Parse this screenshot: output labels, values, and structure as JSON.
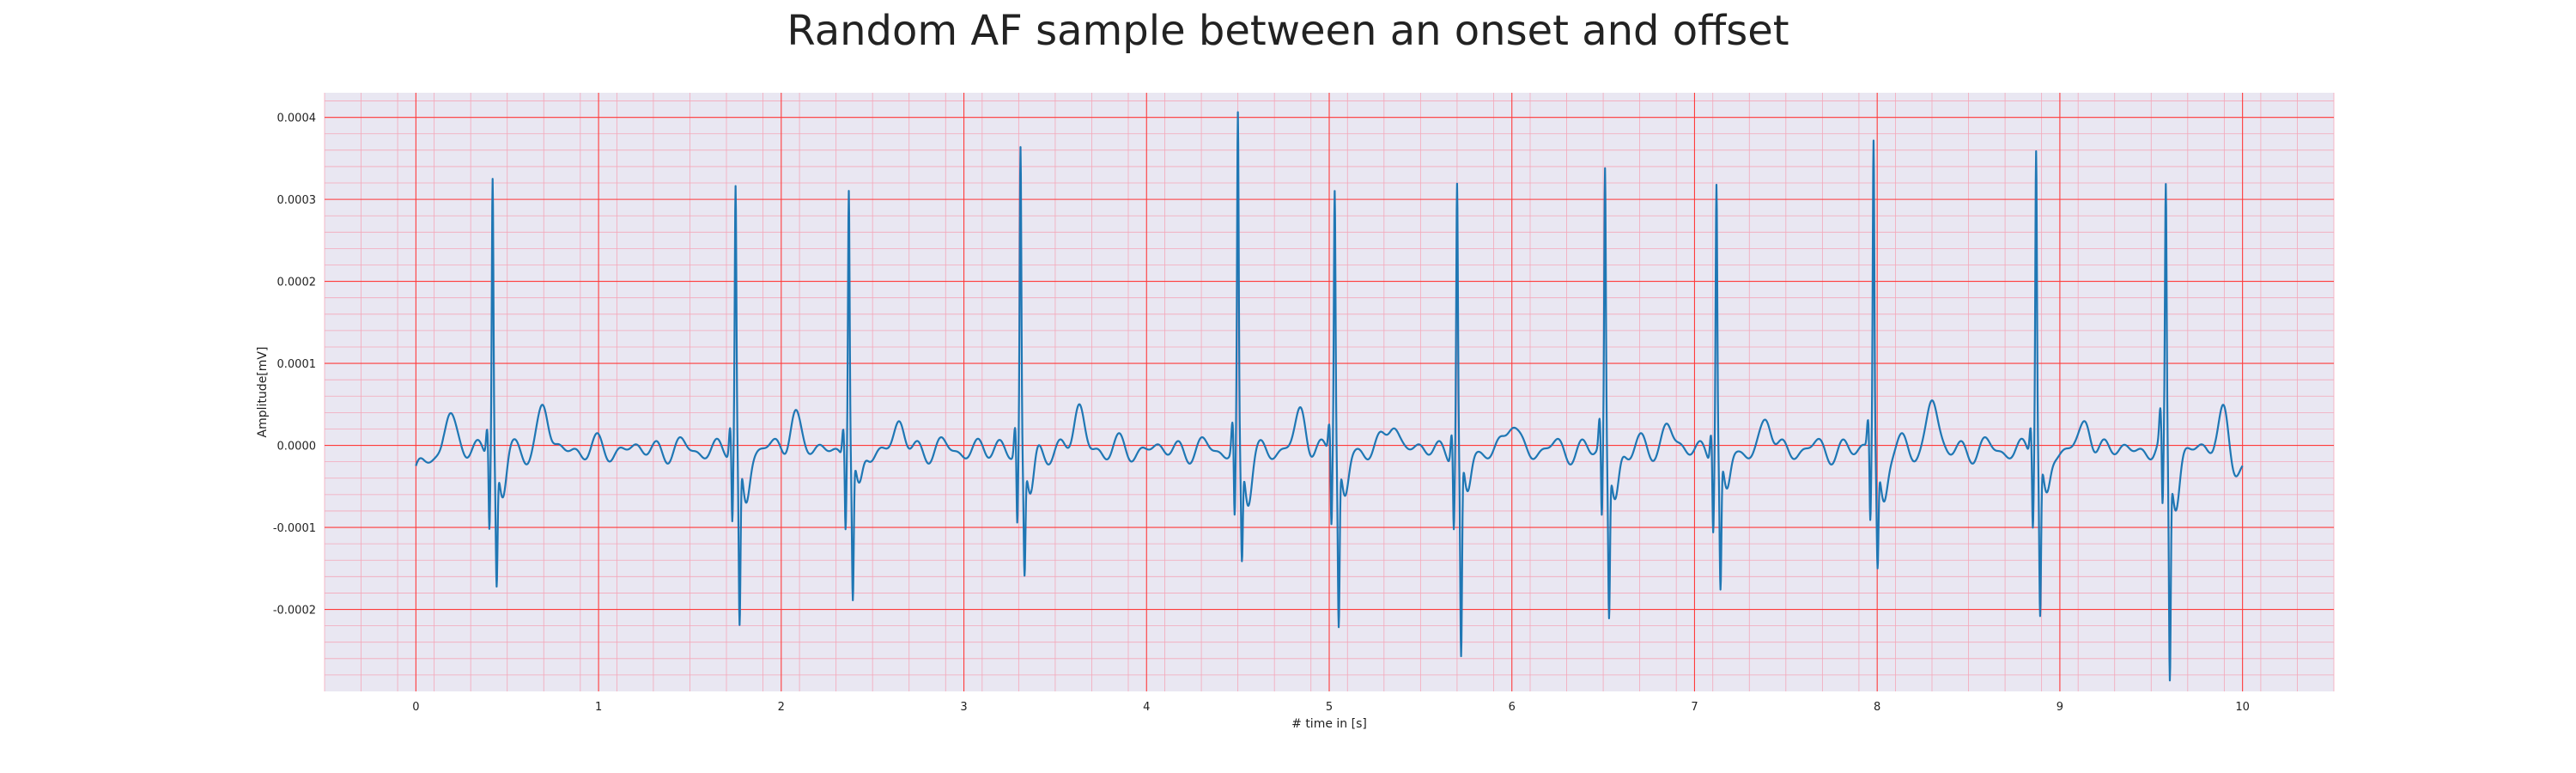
{
  "chart_data": {
    "type": "line",
    "title": "Random AF sample between an onset and offset",
    "xlabel": "# time in [s]",
    "ylabel": "Amplitude[mV]",
    "xlim": [
      -0.5,
      10.5
    ],
    "ylim": [
      -0.0003,
      0.00043
    ],
    "x_ticks": [
      0,
      1,
      2,
      3,
      4,
      5,
      6,
      7,
      8,
      9,
      10
    ],
    "x_tick_labels": [
      "0",
      "1",
      "2",
      "3",
      "4",
      "5",
      "6",
      "7",
      "8",
      "9",
      "10"
    ],
    "y_ticks": [
      -0.0002,
      -0.0001,
      0.0,
      0.0001,
      0.0002,
      0.0003,
      0.0004
    ],
    "y_tick_labels": [
      "-0.0002",
      "-0.0001",
      "0.0000",
      "0.0001",
      "0.0002",
      "0.0003",
      "0.0004"
    ],
    "grid": true,
    "grid_major_color": "#ff3b3b",
    "grid_minor_color": "#f4a7b9",
    "background_color": "#e9e7f2",
    "line_color": "#1f77b4",
    "series": [
      {
        "beats": [
          {
            "t": 0.42,
            "r": 0.00034,
            "s": -0.00015
          },
          {
            "t": 1.75,
            "r": 0.000315,
            "s": -0.00021
          },
          {
            "t": 2.37,
            "r": 0.000325,
            "s": -0.000175
          },
          {
            "t": 3.31,
            "r": 0.00037,
            "s": -0.00014
          },
          {
            "t": 4.5,
            "r": 0.0004,
            "s": -0.00013
          },
          {
            "t": 5.03,
            "r": 0.00032,
            "s": -0.000205
          },
          {
            "t": 5.7,
            "r": 0.000325,
            "s": -0.00025
          },
          {
            "t": 6.51,
            "r": 0.00034,
            "s": -0.00019
          },
          {
            "t": 7.12,
            "r": 0.00033,
            "s": -0.000165
          },
          {
            "t": 7.98,
            "r": 0.00038,
            "s": -0.00013
          },
          {
            "t": 8.87,
            "r": 0.00037,
            "s": -0.000195
          },
          {
            "t": 9.58,
            "r": 0.00031,
            "s": -0.000265
          }
        ],
        "t_waves": [
          {
            "t": 0.18,
            "a": 4.5e-05
          },
          {
            "t": 0.7,
            "a": 5e-05
          },
          {
            "t": 2.07,
            "a": 4.5e-05
          },
          {
            "t": 2.65,
            "a": 3e-05
          },
          {
            "t": 3.63,
            "a": 5e-05
          },
          {
            "t": 4.85,
            "a": 4.5e-05
          },
          {
            "t": 5.35,
            "a": 4e-05
          },
          {
            "t": 6.0,
            "a": 3.5e-05
          },
          {
            "t": 6.85,
            "a": 3e-05
          },
          {
            "t": 7.4,
            "a": 3.5e-05
          },
          {
            "t": 8.3,
            "a": 6e-05
          },
          {
            "t": 9.15,
            "a": 3.5e-05
          },
          {
            "t": 9.9,
            "a": 5.5e-05
          }
        ]
      }
    ]
  }
}
